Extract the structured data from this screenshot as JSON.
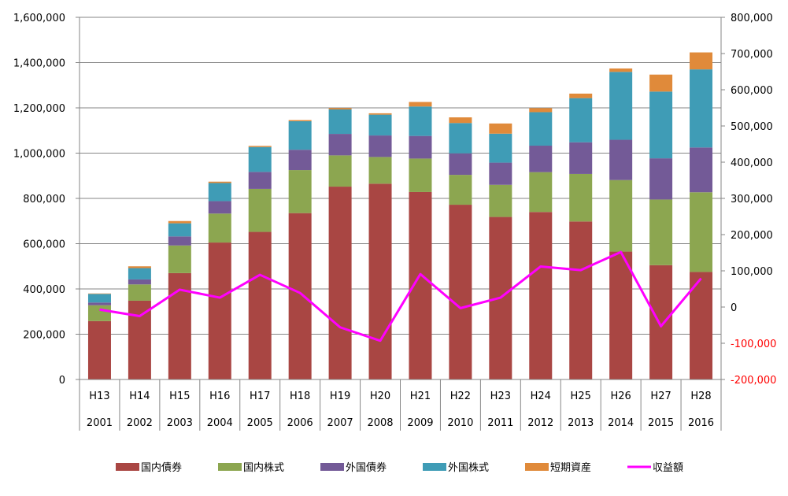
{
  "chart_data": {
    "type": "bar",
    "stacked": true,
    "categories_era": [
      "H13",
      "H14",
      "H15",
      "H16",
      "H17",
      "H18",
      "H19",
      "H20",
      "H21",
      "H22",
      "H23",
      "H24",
      "H25",
      "H26",
      "H27",
      "H28"
    ],
    "categories_year": [
      "2001",
      "2002",
      "2003",
      "2004",
      "2005",
      "2006",
      "2007",
      "2008",
      "2009",
      "2010",
      "2011",
      "2012",
      "2013",
      "2014",
      "2015",
      "2016"
    ],
    "series": [
      {
        "name": "国内債券",
        "color": "#a94643",
        "values": [
          258000,
          348000,
          470000,
          605000,
          652000,
          735000,
          852000,
          865000,
          828000,
          772000,
          718000,
          740000,
          698000,
          565000,
          505000,
          475000
        ]
      },
      {
        "name": "国内株式",
        "color": "#8ca650",
        "values": [
          70000,
          72000,
          122000,
          128000,
          190000,
          190000,
          138000,
          118000,
          148000,
          132000,
          142000,
          176000,
          210000,
          316000,
          290000,
          352000
        ]
      },
      {
        "name": "外国債券",
        "color": "#735a97",
        "values": [
          12000,
          22000,
          40000,
          55000,
          75000,
          90000,
          95000,
          95000,
          100000,
          95000,
          98000,
          117000,
          140000,
          178000,
          182000,
          198000
        ]
      },
      {
        "name": "外国株式",
        "color": "#3f9cb6",
        "values": [
          38000,
          50000,
          58000,
          80000,
          110000,
          126000,
          108000,
          92000,
          130000,
          134000,
          128000,
          148000,
          195000,
          300000,
          295000,
          345000
        ]
      },
      {
        "name": "短期資産",
        "color": "#e08a3a",
        "values": [
          2000,
          8000,
          10000,
          6000,
          5000,
          5000,
          6000,
          6000,
          20000,
          25000,
          45000,
          18000,
          20000,
          15000,
          75000,
          75000
        ]
      }
    ],
    "line": {
      "name": "収益額",
      "color": "#ff00ff",
      "values": [
        -7000,
        -25000,
        48000,
        26000,
        89000,
        39000,
        -56000,
        -93000,
        91000,
        -3000,
        26000,
        112000,
        102000,
        152000,
        -53000,
        79000
      ]
    },
    "y_left": {
      "min": 0,
      "max": 1600000,
      "ticks": [
        "0",
        "200,000",
        "400,000",
        "600,000",
        "800,000",
        "1,000,000",
        "1,200,000",
        "1,400,000",
        "1,600,000"
      ]
    },
    "y_right": {
      "min": -200000,
      "max": 800000,
      "ticks": [
        "-200,000",
        "-100,000",
        "0",
        "100,000",
        "200,000",
        "300,000",
        "400,000",
        "500,000",
        "600,000",
        "700,000",
        "800,000"
      ]
    },
    "legend_position": "bottom",
    "grid": "horizontal"
  }
}
